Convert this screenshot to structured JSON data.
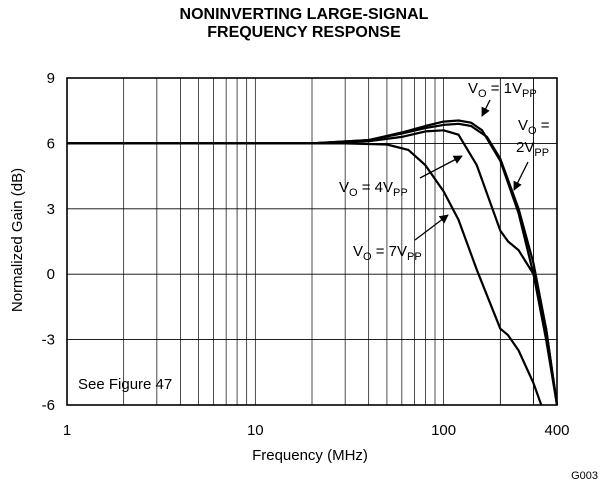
{
  "chart_data": {
    "type": "line",
    "title_lines": [
      "NONINVERTING LARGE-SIGNAL",
      "FREQUENCY RESPONSE"
    ],
    "xlabel": "Frequency (MHz)",
    "ylabel": "Normalized Gain (dB)",
    "xscale": "log",
    "xlim": [
      1,
      400
    ],
    "ylim": [
      -6,
      9
    ],
    "x_ticks": [
      1,
      10,
      100,
      400
    ],
    "y_ticks": [
      9,
      6,
      3,
      0,
      -3,
      -6
    ],
    "grid": true,
    "note": "See Figure 47",
    "figure_id": "G003",
    "series": [
      {
        "name": "VO = 1VPP",
        "label": {
          "main": "V",
          "sub1": "O",
          "mid": " = 1V",
          "sub2": "PP"
        },
        "x": [
          1,
          20,
          40,
          60,
          80,
          100,
          120,
          140,
          160,
          200,
          250,
          300,
          350,
          400
        ],
        "y": [
          6,
          6,
          6.15,
          6.5,
          6.8,
          7.0,
          7.05,
          6.95,
          6.6,
          5.2,
          2.8,
          0.0,
          -3.0,
          -6.0
        ]
      },
      {
        "name": "VO = 2VPP",
        "label": {
          "main": "V",
          "sub1": "O",
          "mid": " =",
          "line2": "2V",
          "sub2": "PP"
        },
        "x": [
          1,
          20,
          40,
          60,
          80,
          100,
          120,
          140,
          170,
          200,
          250,
          300,
          350,
          400
        ],
        "y": [
          6,
          6,
          6.15,
          6.45,
          6.7,
          6.85,
          6.9,
          6.8,
          6.3,
          5.3,
          3.0,
          0.5,
          -2.5,
          -6.0
        ]
      },
      {
        "name": "VO = 4VPP",
        "label": {
          "main": "V",
          "sub1": "O",
          "mid": " = 4V",
          "sub2": "PP"
        },
        "x": [
          1,
          20,
          40,
          60,
          80,
          100,
          120,
          150,
          200,
          220,
          250,
          300,
          350,
          400
        ],
        "y": [
          6,
          6,
          6.1,
          6.3,
          6.55,
          6.6,
          6.4,
          5.0,
          2.0,
          1.5,
          1.1,
          0.0,
          -2.5,
          -6.0
        ]
      },
      {
        "name": "VO = 7VPP",
        "label": {
          "main": "V",
          "sub1": "O",
          "mid": " = 7V",
          "sub2": "PP"
        },
        "x": [
          1,
          30,
          50,
          65,
          80,
          100,
          120,
          150,
          200,
          220,
          250,
          300,
          330
        ],
        "y": [
          6,
          6,
          5.95,
          5.7,
          5.0,
          3.8,
          2.5,
          0.2,
          -2.5,
          -2.8,
          -3.5,
          -5.0,
          -6.0
        ]
      }
    ]
  }
}
